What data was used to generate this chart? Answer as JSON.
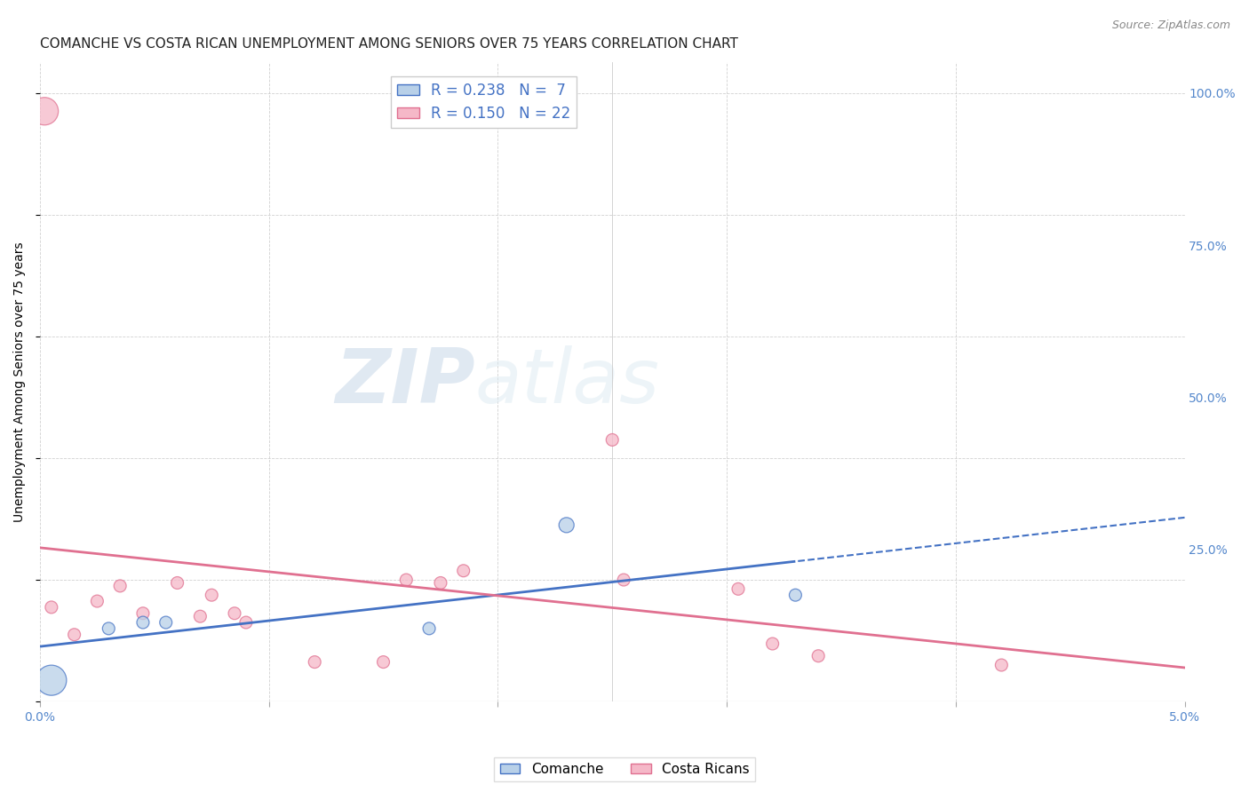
{
  "title": "COMANCHE VS COSTA RICAN UNEMPLOYMENT AMONG SENIORS OVER 75 YEARS CORRELATION CHART",
  "source": "Source: ZipAtlas.com",
  "ylabel": "Unemployment Among Seniors over 75 years",
  "xlim": [
    0.0,
    0.05
  ],
  "ylim": [
    0.0,
    1.05
  ],
  "xticks": [
    0.0,
    0.01,
    0.02,
    0.03,
    0.04,
    0.05
  ],
  "yticks": [
    0.0,
    0.25,
    0.5,
    0.75,
    1.0
  ],
  "xtick_labels": [
    "0.0%",
    "",
    "",
    "",
    "",
    "5.0%"
  ],
  "ytick_labels_right": [
    "",
    "25.0%",
    "50.0%",
    "75.0%",
    "100.0%"
  ],
  "comanche_x": [
    0.0005,
    0.003,
    0.0045,
    0.0055,
    0.017,
    0.023,
    0.033
  ],
  "comanche_y": [
    0.035,
    0.12,
    0.13,
    0.13,
    0.12,
    0.29,
    0.175
  ],
  "comanche_sizes": [
    600,
    100,
    100,
    100,
    100,
    150,
    100
  ],
  "costa_x": [
    0.0005,
    0.0015,
    0.0025,
    0.0035,
    0.0045,
    0.006,
    0.007,
    0.0075,
    0.0085,
    0.009,
    0.012,
    0.015,
    0.016,
    0.0175,
    0.0185,
    0.025,
    0.0255,
    0.0305,
    0.032,
    0.034,
    0.042,
    0.0002
  ],
  "costa_y": [
    0.155,
    0.11,
    0.165,
    0.19,
    0.145,
    0.195,
    0.14,
    0.175,
    0.145,
    0.13,
    0.065,
    0.065,
    0.2,
    0.195,
    0.215,
    0.43,
    0.2,
    0.185,
    0.095,
    0.075,
    0.06,
    0.97
  ],
  "costa_sizes": [
    100,
    100,
    100,
    100,
    100,
    100,
    100,
    100,
    100,
    100,
    100,
    100,
    100,
    100,
    100,
    100,
    100,
    100,
    100,
    100,
    100,
    500
  ],
  "comanche_face_color": "#b8d0e8",
  "comanche_edge_color": "#4472c4",
  "costa_face_color": "#f5b8c8",
  "costa_edge_color": "#e07090",
  "comanche_line_color": "#4472c4",
  "costa_line_color": "#e07090",
  "legend_r_comanche": "R = 0.238",
  "legend_n_comanche": "N =  7",
  "legend_r_costa": "R = 0.150",
  "legend_n_costa": "N = 22",
  "watermark_text": "ZIPatlas",
  "title_fontsize": 11,
  "axis_label_fontsize": 10,
  "tick_fontsize": 10,
  "legend_fontsize": 12
}
